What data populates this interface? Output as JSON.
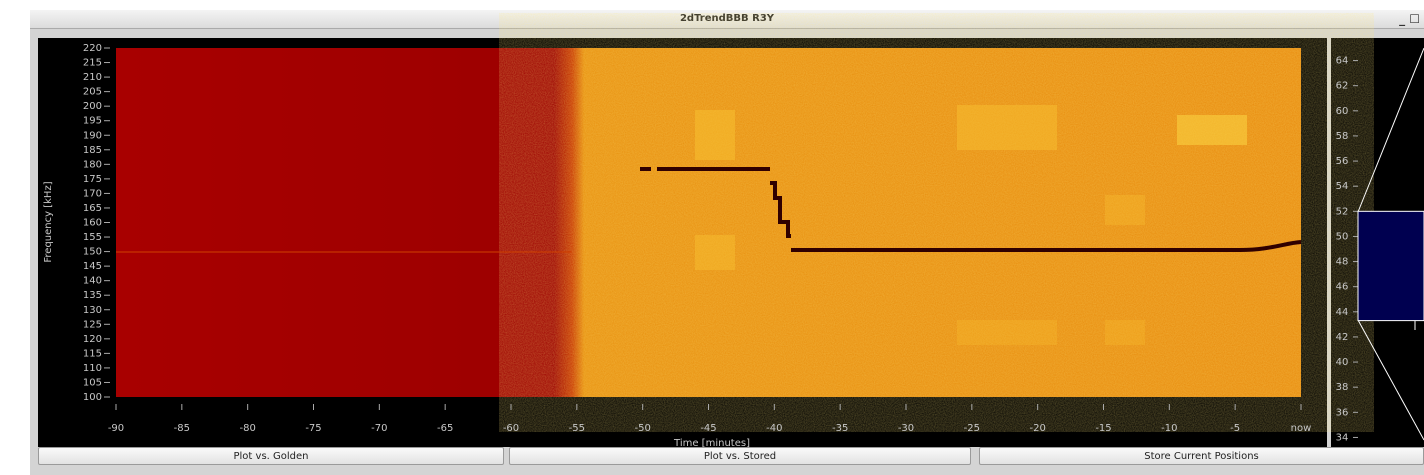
{
  "window": {
    "title": "2dTrendBBB R3Y"
  },
  "chart_data": [
    {
      "type": "heatmap",
      "xlabel": "Time [minutes]",
      "ylabel": "Frequency [kHz]",
      "xlim": [
        -90,
        0
      ],
      "xticks": [
        -90,
        -85,
        -80,
        -75,
        -70,
        -65,
        -60,
        -55,
        -50,
        -45,
        -40,
        -35,
        -30,
        -25,
        -20,
        -15,
        -10,
        -5,
        {
          "value": 0,
          "label": "now"
        }
      ],
      "ylim": [
        100,
        220
      ],
      "yticks": [
        100,
        105,
        110,
        115,
        120,
        125,
        130,
        135,
        140,
        145,
        150,
        155,
        160,
        165,
        170,
        175,
        180,
        185,
        190,
        195,
        200,
        205,
        210,
        215,
        220
      ]
    },
    {
      "type": "range",
      "ylim": [
        33,
        65
      ],
      "yticks": [
        34,
        36,
        38,
        40,
        42,
        44,
        46,
        48,
        50,
        52,
        54,
        56,
        58,
        60,
        62,
        64
      ],
      "values": [
        43.3,
        52
      ],
      "color": "#000050"
    }
  ],
  "buttons": [
    "Plot vs. Golden",
    "Plot vs. Stored",
    "Store Current Positions"
  ]
}
